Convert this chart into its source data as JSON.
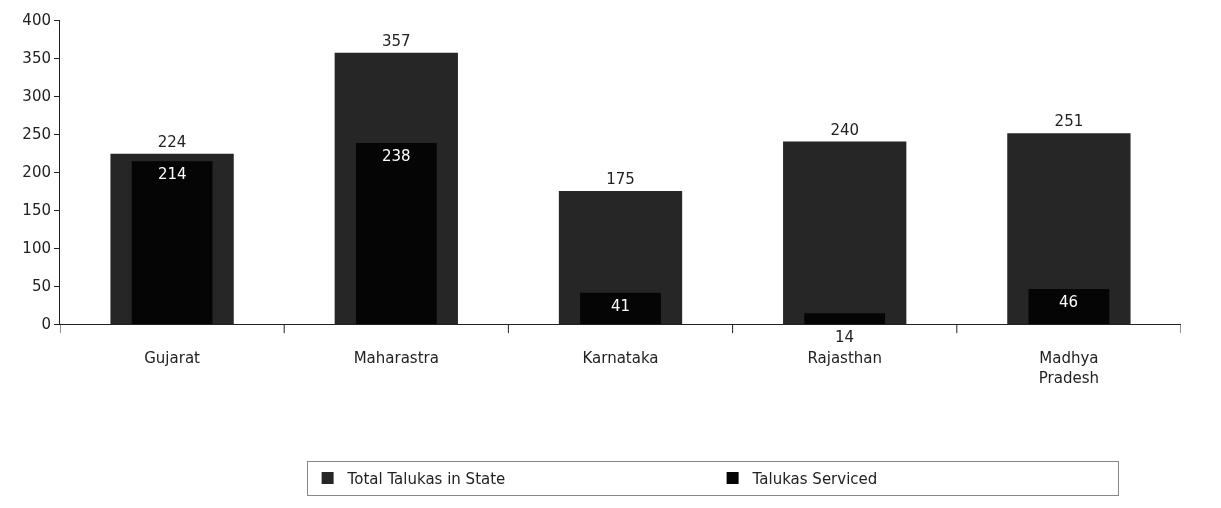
{
  "chart_data": {
    "type": "bar",
    "categories": [
      "Gujarat",
      "Maharastra",
      "Karnataka",
      "Rajasthan",
      "Madhya Pradesh"
    ],
    "series": [
      {
        "name": "Total Talukas in State",
        "color": "#262626",
        "values": [
          224,
          357,
          175,
          240,
          251
        ]
      },
      {
        "name": "Talukas Serviced",
        "color": "#050505",
        "values": [
          214,
          238,
          41,
          14,
          46
        ]
      }
    ],
    "ylim": [
      0,
      400
    ],
    "yticks": [
      0,
      50,
      100,
      150,
      200,
      250,
      300,
      350,
      400
    ],
    "data_labels": true,
    "legend": "bottom"
  }
}
